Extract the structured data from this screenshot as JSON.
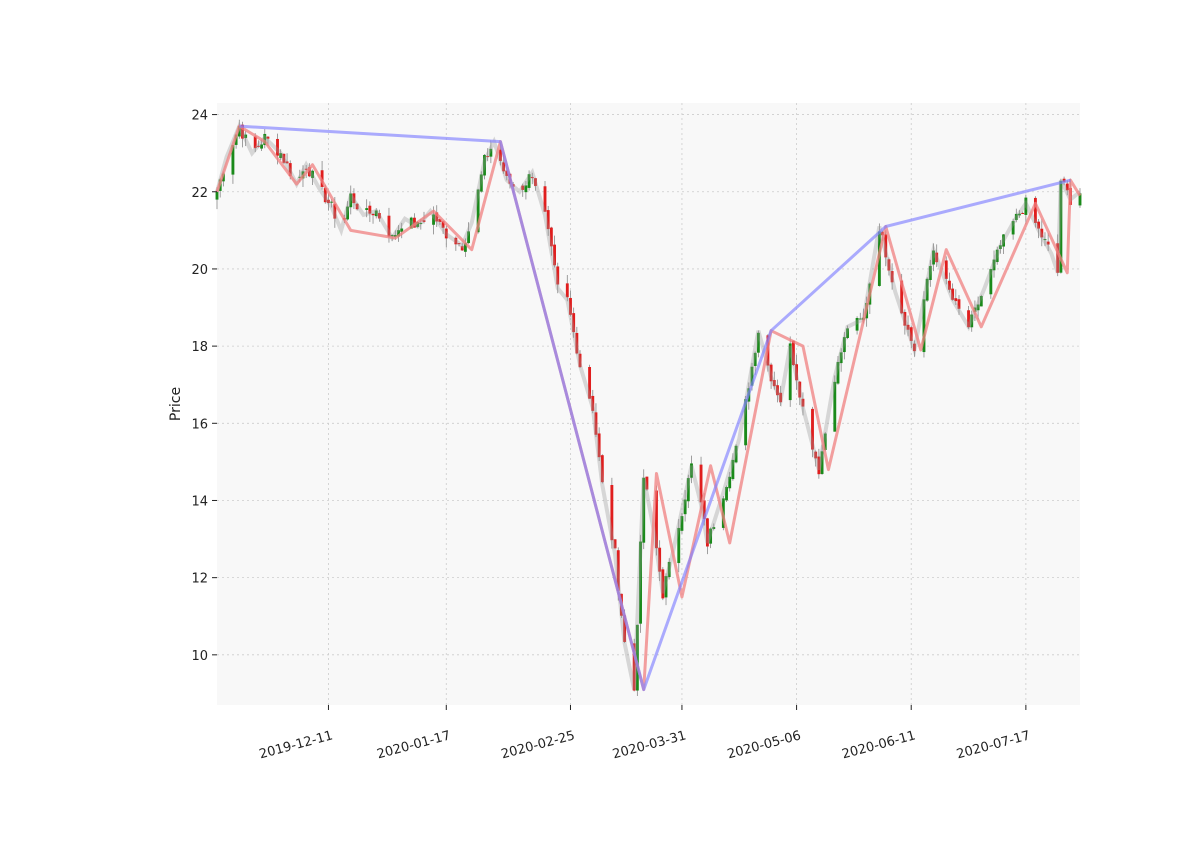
{
  "chart_data": {
    "type": "candlestick",
    "title": "",
    "xlabel": "",
    "ylabel": "Price",
    "ylim": [
      8.7,
      24.3
    ],
    "xlim": [
      "2019-11-06",
      "2020-08-03"
    ],
    "grid": true,
    "y_ticks": [
      10,
      12,
      14,
      16,
      18,
      20,
      22,
      24
    ],
    "x_ticks": [
      "2019-12-11",
      "2020-01-17",
      "2020-02-25",
      "2020-03-31",
      "2020-05-06",
      "2020-06-11",
      "2020-07-17"
    ],
    "colors": {
      "up": "#1a8a1a",
      "down": "#e01e1e",
      "zigzag_minor": "#f08080",
      "zigzag_major": "#8080ff",
      "background": "#f8f8f8",
      "grid": "#cccccc"
    },
    "price_path": [
      [
        "2019-11-06",
        22.0
      ],
      [
        "2019-11-09",
        22.9
      ],
      [
        "2019-11-13",
        23.7
      ],
      [
        "2019-11-17",
        23.0
      ],
      [
        "2019-11-21",
        23.4
      ],
      [
        "2019-11-26",
        23.0
      ],
      [
        "2019-12-01",
        22.2
      ],
      [
        "2019-12-04",
        22.7
      ],
      [
        "2019-12-08",
        22.1
      ],
      [
        "2019-12-12",
        21.6
      ],
      [
        "2019-12-15",
        21.0
      ],
      [
        "2019-12-18",
        21.9
      ],
      [
        "2019-12-22",
        21.4
      ],
      [
        "2019-12-26",
        21.5
      ],
      [
        "2019-12-31",
        20.8
      ],
      [
        "2020-01-04",
        21.3
      ],
      [
        "2020-01-08",
        21.1
      ],
      [
        "2020-01-12",
        21.5
      ],
      [
        "2020-01-17",
        20.9
      ],
      [
        "2020-01-22",
        20.6
      ],
      [
        "2020-01-25",
        21.2
      ],
      [
        "2020-01-29",
        22.8
      ],
      [
        "2020-02-01",
        23.3
      ],
      [
        "2020-02-05",
        22.3
      ],
      [
        "2020-02-09",
        22.0
      ],
      [
        "2020-02-13",
        22.5
      ],
      [
        "2020-02-17",
        21.4
      ],
      [
        "2020-02-21",
        19.5
      ],
      [
        "2020-02-24",
        19.2
      ],
      [
        "2020-02-28",
        17.5
      ],
      [
        "2020-03-03",
        16.4
      ],
      [
        "2020-03-06",
        14.4
      ],
      [
        "2020-03-10",
        12.6
      ],
      [
        "2020-03-13",
        10.3
      ],
      [
        "2020-03-16",
        9.1
      ],
      [
        "2020-03-19",
        14.6
      ],
      [
        "2020-03-22",
        13.3
      ],
      [
        "2020-03-25",
        11.6
      ],
      [
        "2020-03-28",
        12.6
      ],
      [
        "2020-04-03",
        14.9
      ],
      [
        "2020-04-06",
        13.9
      ],
      [
        "2020-04-08",
        12.9
      ],
      [
        "2020-04-13",
        14.2
      ],
      [
        "2020-04-18",
        15.6
      ],
      [
        "2020-04-24",
        18.4
      ],
      [
        "2020-04-28",
        17.2
      ],
      [
        "2020-05-01",
        16.6
      ],
      [
        "2020-05-04",
        18.0
      ],
      [
        "2020-05-08",
        16.4
      ],
      [
        "2020-05-13",
        14.8
      ],
      [
        "2020-05-18",
        17.2
      ],
      [
        "2020-05-22",
        18.5
      ],
      [
        "2020-05-27",
        18.7
      ],
      [
        "2020-06-01",
        21.1
      ],
      [
        "2020-06-06",
        19.4
      ],
      [
        "2020-06-12",
        17.9
      ],
      [
        "2020-06-18",
        20.5
      ],
      [
        "2020-06-24",
        19.2
      ],
      [
        "2020-06-29",
        18.5
      ],
      [
        "2020-07-04",
        19.5
      ],
      [
        "2020-07-09",
        20.6
      ],
      [
        "2020-07-13",
        21.2
      ],
      [
        "2020-07-17",
        21.7
      ],
      [
        "2020-07-21",
        21.0
      ],
      [
        "2020-07-25",
        20.4
      ],
      [
        "2020-07-27",
        19.9
      ],
      [
        "2020-07-28",
        22.3
      ],
      [
        "2020-07-31",
        21.8
      ],
      [
        "2020-08-03",
        22.0
      ]
    ],
    "zigzag_minor": [
      [
        "2019-11-06",
        22.0
      ],
      [
        "2019-11-13",
        23.7
      ],
      [
        "2019-11-21",
        23.3
      ],
      [
        "2019-12-01",
        22.2
      ],
      [
        "2019-12-06",
        22.7
      ],
      [
        "2019-12-18",
        21.0
      ],
      [
        "2020-01-01",
        20.8
      ],
      [
        "2020-01-13",
        21.5
      ],
      [
        "2020-01-25",
        20.5
      ],
      [
        "2020-02-03",
        23.3
      ],
      [
        "2020-03-19",
        9.1
      ],
      [
        "2020-03-23",
        14.7
      ],
      [
        "2020-03-31",
        11.5
      ],
      [
        "2020-04-09",
        14.9
      ],
      [
        "2020-04-15",
        12.9
      ],
      [
        "2020-04-28",
        18.4
      ],
      [
        "2020-05-08",
        18.0
      ],
      [
        "2020-05-16",
        14.8
      ],
      [
        "2020-06-03",
        21.1
      ],
      [
        "2020-06-14",
        17.9
      ],
      [
        "2020-06-22",
        20.5
      ],
      [
        "2020-07-03",
        18.5
      ],
      [
        "2020-07-20",
        21.7
      ],
      [
        "2020-07-30",
        19.9
      ],
      [
        "2020-07-31",
        22.3
      ],
      [
        "2020-08-03",
        21.9
      ]
    ],
    "zigzag_major": [
      [
        "2019-11-13",
        23.7
      ],
      [
        "2020-02-03",
        23.3
      ],
      [
        "2020-03-19",
        9.1
      ],
      [
        "2020-04-28",
        18.4
      ],
      [
        "2020-06-03",
        21.1
      ],
      [
        "2020-07-31",
        22.3
      ]
    ]
  }
}
